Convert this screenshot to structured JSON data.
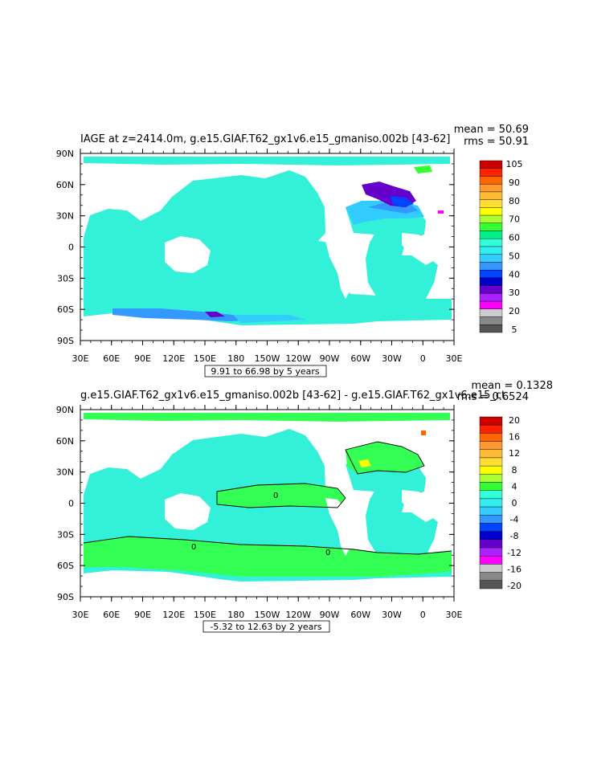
{
  "panels": [
    {
      "title": "IAGE at z=2414.0m, g.e15.GIAF.T62_gx1v6.e15_gmaniso.002b [43-62]",
      "mean_text": "mean = 50.69",
      "rms_text": "rms = 50.91",
      "range_text": "9.91 to 66.98 by 5 years",
      "colorbar_labels": [
        "105",
        "90",
        "80",
        "70",
        "60",
        "50",
        "40",
        "30",
        "20",
        "5"
      ],
      "contour_label": ""
    },
    {
      "title": "g.e15.GIAF.T62_gx1v6.e15_gmaniso.002b [43-62] - g.e15.GIAF.T62_gx1v6.e15_ct",
      "mean_text": "mean = 0.1328",
      "rms_text": "rms = 0.6524",
      "range_text": "-5.32 to 12.63 by 2 years",
      "colorbar_labels": [
        "20",
        "16",
        "12",
        "8",
        "4",
        "0",
        "-4",
        "-8",
        "-12",
        "-16",
        "-20"
      ],
      "contour_label": "0"
    }
  ],
  "axes": {
    "lat_labels": [
      "90N",
      "60N",
      "30N",
      "0",
      "30S",
      "60S",
      "90S"
    ],
    "lon_labels": [
      "30E",
      "60E",
      "90E",
      "120E",
      "150E",
      "180",
      "150W",
      "120W",
      "90W",
      "60W",
      "30W",
      "0",
      "30E"
    ]
  },
  "colors": {
    "panel1_scale": [
      "#cc0000",
      "#ff2200",
      "#ff6600",
      "#ff9933",
      "#ffbb33",
      "#ffdd33",
      "#ffff00",
      "#aaff33",
      "#33ff33",
      "#00ee88",
      "#33ffdd",
      "#33eeee",
      "#33ccff",
      "#3399ff",
      "#0044ff",
      "#0000cc",
      "#6600cc",
      "#aa22ff",
      "#ff00ff",
      "#cccccc",
      "#888888",
      "#555555"
    ],
    "panel2_scale": [
      "#cc0000",
      "#ff2200",
      "#ff6600",
      "#ff9933",
      "#ffbb33",
      "#ffdd33",
      "#ffff00",
      "#aaff33",
      "#33ff33",
      "#33ffdd",
      "#33eeee",
      "#33ccff",
      "#3399ff",
      "#0044ff",
      "#0000cc",
      "#6600cc",
      "#aa22ff",
      "#ff00ff",
      "#cccccc",
      "#888888",
      "#555555"
    ],
    "ocean_main": "#33f0d8",
    "ocean_green": "#33ff55"
  }
}
